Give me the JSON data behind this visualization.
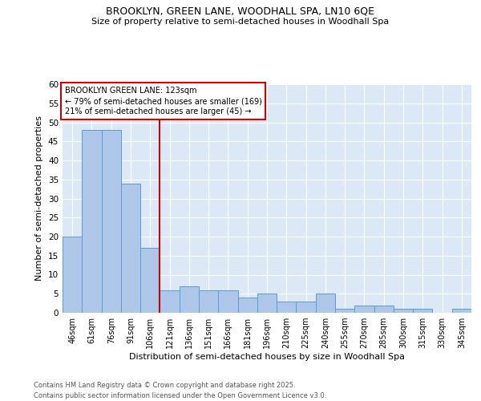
{
  "title_line1": "BROOKLYN, GREEN LANE, WOODHALL SPA, LN10 6QE",
  "title_line2": "Size of property relative to semi-detached houses in Woodhall Spa",
  "xlabel": "Distribution of semi-detached houses by size in Woodhall Spa",
  "ylabel": "Number of semi-detached properties",
  "categories": [
    "46sqm",
    "61sqm",
    "76sqm",
    "91sqm",
    "106sqm",
    "121sqm",
    "136sqm",
    "151sqm",
    "166sqm",
    "181sqm",
    "196sqm",
    "210sqm",
    "225sqm",
    "240sqm",
    "255sqm",
    "270sqm",
    "285sqm",
    "300sqm",
    "315sqm",
    "330sqm",
    "345sqm"
  ],
  "values": [
    20,
    48,
    48,
    34,
    17,
    6,
    7,
    6,
    6,
    4,
    5,
    3,
    3,
    5,
    1,
    2,
    2,
    1,
    1,
    0,
    1
  ],
  "bar_color": "#aec6e8",
  "bar_edge_color": "#5b9bd5",
  "vline_x": 4.5,
  "vline_color": "#cc0000",
  "annotation_title": "BROOKLYN GREEN LANE: 123sqm",
  "annotation_line1": "← 79% of semi-detached houses are smaller (169)",
  "annotation_line2": "21% of semi-detached houses are larger (45) →",
  "annotation_box_color": "#cc0000",
  "ylim": [
    0,
    60
  ],
  "yticks": [
    0,
    5,
    10,
    15,
    20,
    25,
    30,
    35,
    40,
    45,
    50,
    55,
    60
  ],
  "bg_color": "#dce8f5",
  "footer_line1": "Contains HM Land Registry data © Crown copyright and database right 2025.",
  "footer_line2": "Contains public sector information licensed under the Open Government Licence v3.0."
}
